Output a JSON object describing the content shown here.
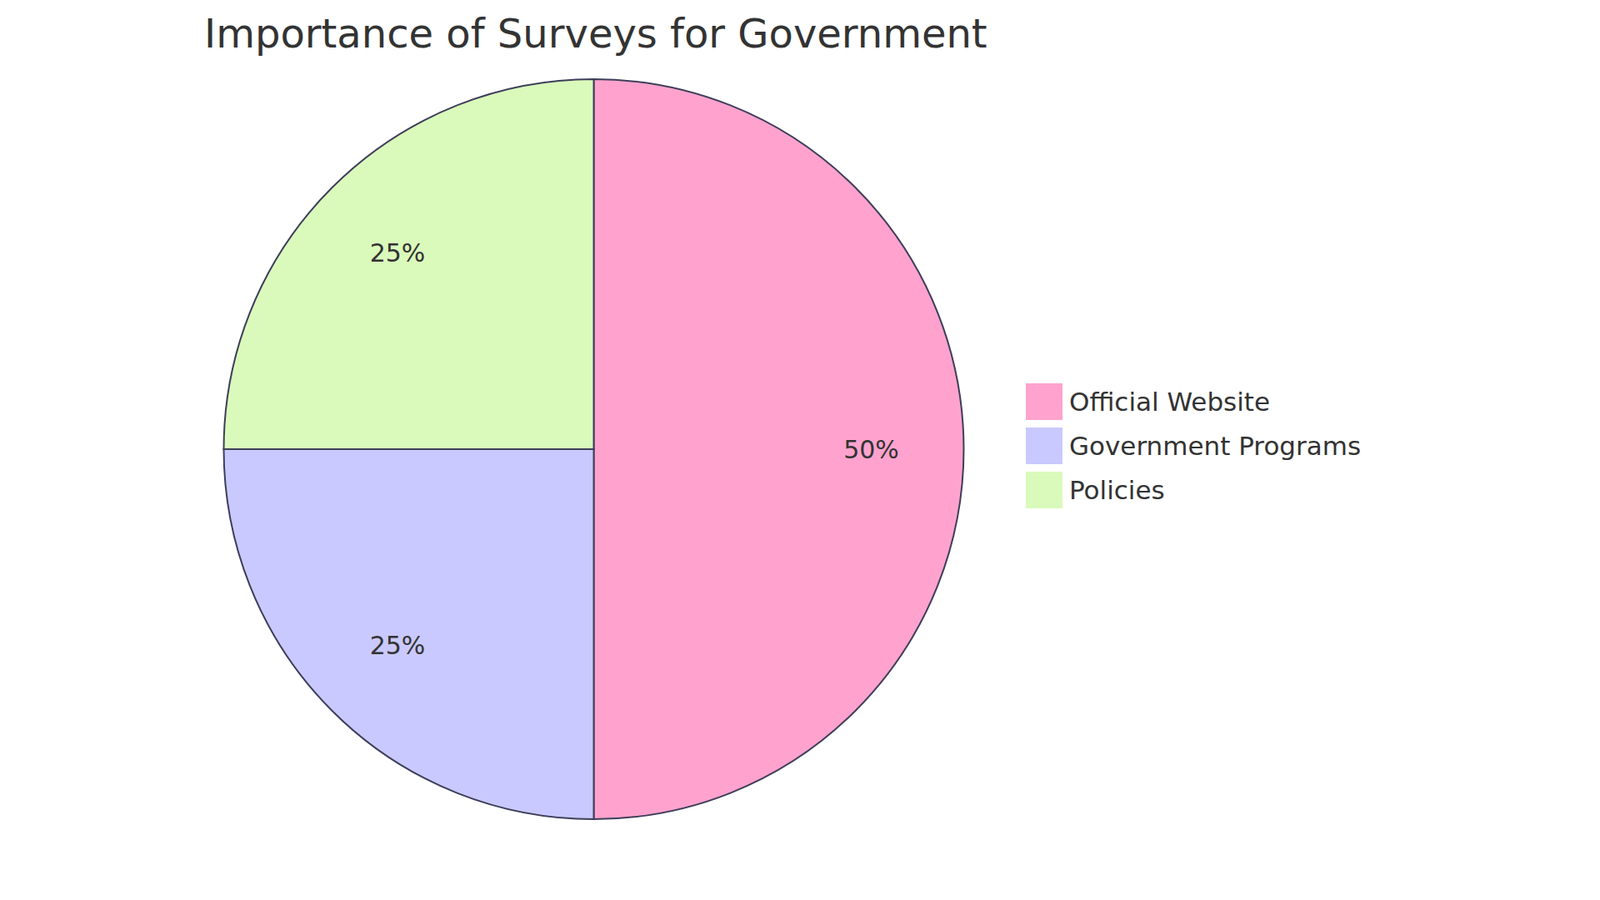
{
  "chart_data": {
    "type": "pie",
    "title": "Importance of Surveys for Government",
    "categories": [
      "Official Website",
      "Government Programs",
      "Policies"
    ],
    "values": [
      50,
      25,
      25
    ],
    "value_labels": [
      "50%",
      "25%",
      "25%"
    ],
    "colors": [
      "#ffa3ce",
      "#c9c9ff",
      "#dafabb"
    ],
    "data_labels": true,
    "legend": "right"
  }
}
